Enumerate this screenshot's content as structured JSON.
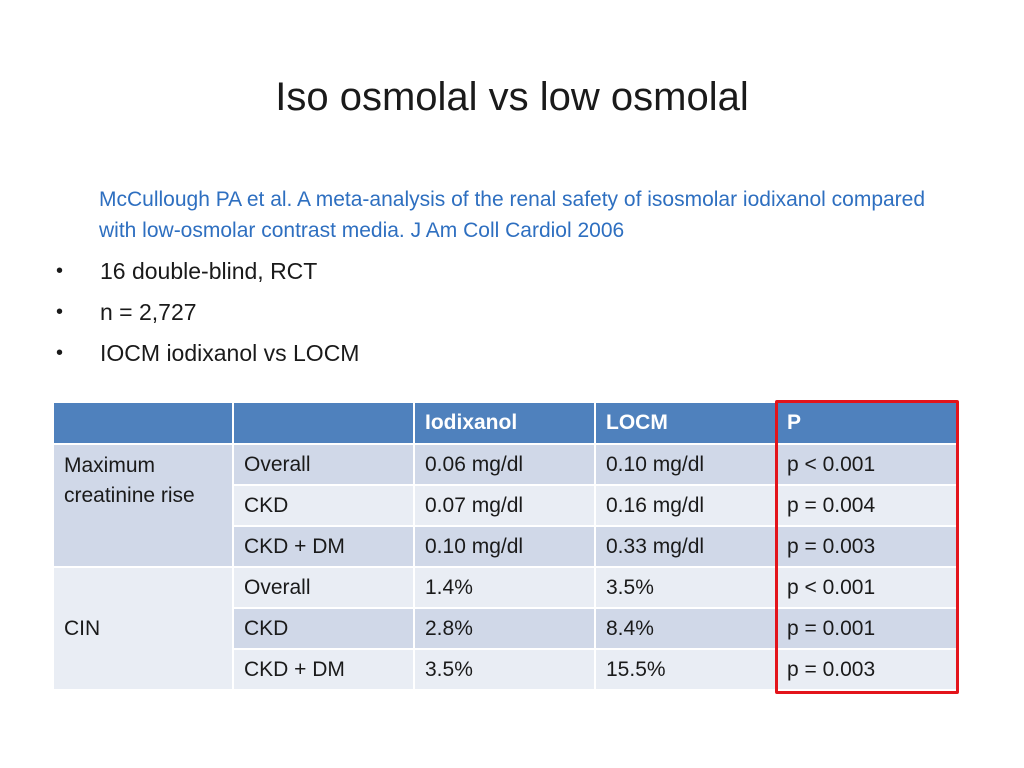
{
  "slide": {
    "title": "Iso osmolal vs low osmolal",
    "reference": "McCullough PA et al. A meta-analysis of the renal safety of isosmolar iodixanol compared with low-osmolar contrast media. J Am Coll Cardiol 2006",
    "bullet_symbol": "•",
    "bullets": [
      "16 double-blind, RCT",
      "n = 2,727",
      "IOCM iodixanol vs LOCM"
    ]
  },
  "table": {
    "headers": [
      "",
      "",
      "Iodixanol",
      "LOCM",
      "P"
    ],
    "groups": [
      {
        "label": "Maximum creatinine rise",
        "rows": [
          [
            "Overall",
            "0.06 mg/dl",
            "0.10 mg/dl",
            "p < 0.001"
          ],
          [
            "CKD",
            "0.07 mg/dl",
            "0.16 mg/dl",
            "p = 0.004"
          ],
          [
            "CKD + DM",
            "0.10 mg/dl",
            "0.33 mg/dl",
            "p = 0.003"
          ]
        ]
      },
      {
        "label": "CIN",
        "rows": [
          [
            "Overall",
            "1.4%",
            "3.5%",
            "p < 0.001"
          ],
          [
            "CKD",
            "2.8%",
            "8.4%",
            "p = 0.001"
          ],
          [
            "CKD + DM",
            "3.5%",
            "15.5%",
            "p = 0.003"
          ]
        ]
      }
    ]
  },
  "colors": {
    "header_bg": "#4f81bd",
    "row_dark": "#d0d8e8",
    "row_light": "#e9edf4",
    "reference_text": "#2e6fc0",
    "highlight_border": "#e3141b"
  }
}
